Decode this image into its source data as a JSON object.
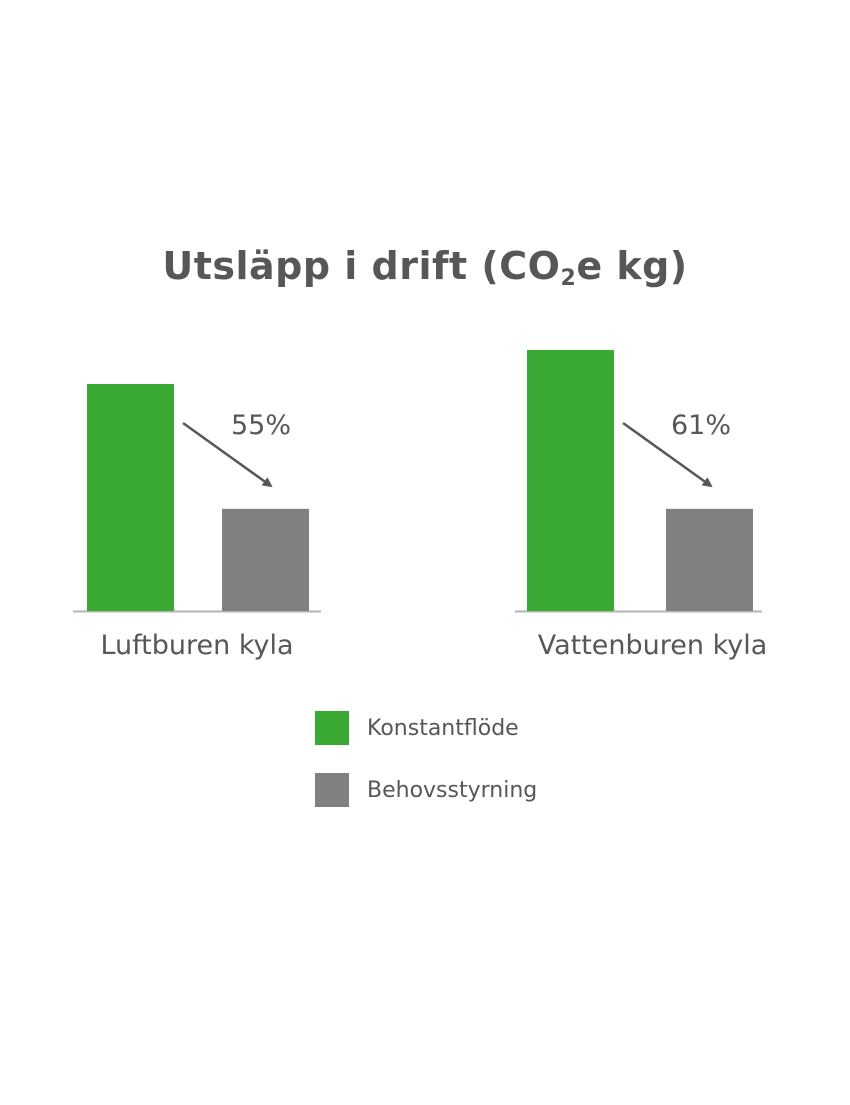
{
  "chart_data": {
    "type": "bar",
    "title": {
      "main": "Utsläpp i drift (CO",
      "sub": "2",
      "rest": "e kg)"
    },
    "categories": [
      "Luftburen kyla",
      "Vattenburen kyla"
    ],
    "series": [
      {
        "name": "Konstantflöde",
        "color": "#3aaa35",
        "values": [
          100,
          115
        ]
      },
      {
        "name": "Behovsstyrning",
        "color": "#808080",
        "values": [
          45,
          45
        ]
      }
    ],
    "annotations": [
      "55%",
      "61%"
    ],
    "ylim": [
      0,
      115
    ],
    "grid": false,
    "y_axis_labels": false,
    "legend_placement": "bottom-center",
    "text_color": "#575757"
  }
}
